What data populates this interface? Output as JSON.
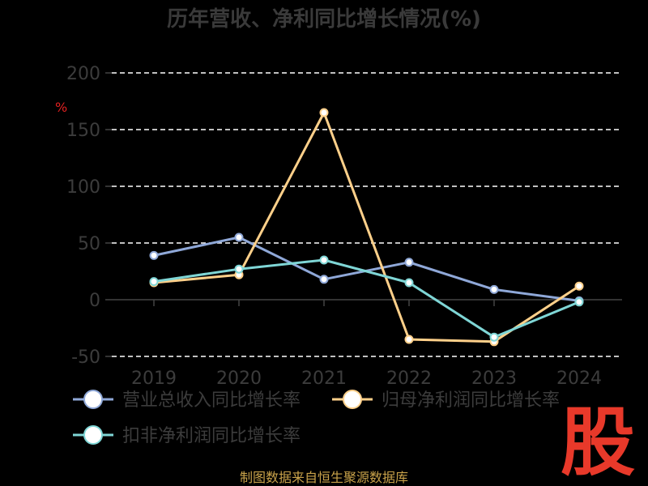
{
  "chart_data": {
    "type": "line",
    "title": "历年营收、净利同比增长情况(%)",
    "ylabel": "%",
    "x": [
      "2019",
      "2020",
      "2021",
      "2022",
      "2023",
      "2024"
    ],
    "ylim": [
      -50,
      200
    ],
    "yticks": [
      200,
      150,
      100,
      50,
      0,
      -50
    ],
    "grid": true,
    "legend_position": "bottom",
    "series": [
      {
        "name": "营业总收入同比增长率",
        "values": [
          39,
          55,
          18,
          33,
          9,
          -1
        ],
        "color": "#8fa8d8"
      },
      {
        "name": "归母净利润同比增长率",
        "values": [
          15,
          22,
          165,
          -35,
          -37,
          12
        ],
        "color": "#ffd08a"
      },
      {
        "name": "扣非净利润同比增长率",
        "values": [
          16,
          27,
          35,
          15,
          -33,
          -2
        ],
        "color": "#7fd6d6"
      }
    ]
  },
  "footer": "制图数据来自恒生聚源数据库",
  "logo_text": "股"
}
